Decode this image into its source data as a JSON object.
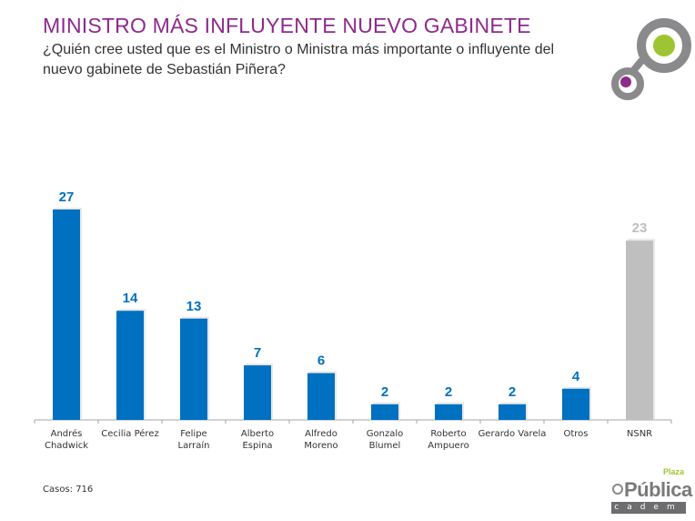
{
  "header": {
    "title": "MINISTRO MÁS INFLUYENTE NUEVO GABINETE",
    "subtitle": "¿Quién cree usted que es el Ministro o Ministra más importante o influyente del nuevo gabinete de Sebastián Piñera?"
  },
  "footer": {
    "casos": "Casos: 716"
  },
  "logos": {
    "bottom_plaza": "Plaza",
    "bottom_publica": "Pública",
    "bottom_cadem": "cadem"
  },
  "colors": {
    "title": "#8e2a8c",
    "bar": "#0070c0",
    "bar_nsnr": "#bfbfbf",
    "label": "#0070c0",
    "label_nsnr": "#bfbfbf",
    "logo_gray": "#8a8a8c",
    "logo_green": "#9dc531",
    "logo_purple": "#8e2a8c"
  },
  "chart_data": {
    "type": "bar",
    "categories": [
      [
        "Andrés",
        "Chadwick"
      ],
      [
        "Cecilia Pérez"
      ],
      [
        "Felipe",
        "Larraín"
      ],
      [
        "Alberto",
        "Espina"
      ],
      [
        "Alfredo",
        "Moreno"
      ],
      [
        "Gonzalo",
        "Blumel"
      ],
      [
        "Roberto",
        "Ampuero"
      ],
      [
        "Gerardo Varela"
      ],
      [
        "Otros"
      ],
      [
        "NSNR"
      ]
    ],
    "values": [
      27,
      14,
      13,
      7,
      6,
      2,
      2,
      2,
      4,
      23
    ],
    "highlight_gray": [
      "NSNR"
    ],
    "data_labels": true,
    "grid": false,
    "ylim": [
      0,
      27
    ]
  }
}
